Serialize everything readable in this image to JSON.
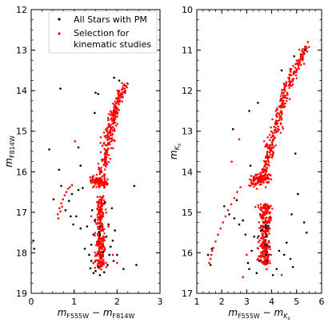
{
  "chart_data": [
    {
      "type": "scatter",
      "xlabel": {
        "base": "m",
        "sub": "F555W",
        "minus": " − ",
        "base2": "m",
        "sub2": "F814W"
      },
      "ylabel": {
        "base": "m",
        "sub": "F814W"
      },
      "xlim": [
        0,
        3
      ],
      "ylim": [
        19,
        12
      ],
      "xticks": [
        0,
        1,
        2,
        3
      ],
      "yticks": [
        12,
        13,
        14,
        15,
        16,
        17,
        18,
        19
      ],
      "grid": false,
      "legend": "top-right",
      "series": [
        {
          "name": "All Stars with PM",
          "color": "#000000",
          "marker": "dot",
          "points": [
            [
              0.68,
              13.95
            ],
            [
              1.5,
              14.05
            ],
            [
              1.56,
              14.08
            ],
            [
              1.93,
              13.68
            ],
            [
              2.05,
              13.75
            ],
            [
              1.48,
              14.55
            ],
            [
              1.1,
              15.4
            ],
            [
              1.15,
              15.85
            ],
            [
              0.42,
              15.45
            ],
            [
              0.65,
              15.95
            ],
            [
              0.7,
              16.35
            ],
            [
              0.52,
              16.68
            ],
            [
              0.88,
              16.72
            ],
            [
              0.8,
              16.95
            ],
            [
              0.92,
              17.1
            ],
            [
              0.98,
              17.3
            ],
            [
              1.05,
              17.1
            ],
            [
              1.15,
              17.4
            ],
            [
              0.95,
              16.55
            ],
            [
              1.1,
              16.45
            ],
            [
              1.2,
              16.4
            ],
            [
              2.4,
              16.35
            ],
            [
              1.3,
              17.35
            ],
            [
              1.25,
              17.9
            ],
            [
              0.05,
              17.7
            ],
            [
              0.07,
              17.9
            ],
            [
              1.9,
              17.7
            ],
            [
              2.0,
              18.05
            ],
            [
              2.15,
              18.4
            ],
            [
              2.45,
              18.3
            ],
            [
              1.4,
              18.2
            ],
            [
              1.35,
              18.05
            ],
            [
              1.45,
              18.5
            ],
            [
              1.5,
              18.45
            ],
            [
              1.82,
              18.05
            ],
            [
              1.85,
              17.85
            ],
            [
              1.75,
              17.6
            ],
            [
              1.45,
              17.55
            ],
            [
              1.48,
              17.2
            ],
            [
              1.8,
              17.3
            ],
            [
              1.95,
              17.45
            ],
            [
              1.4,
              17.8
            ],
            [
              1.88,
              16.9
            ],
            [
              1.72,
              16.75
            ],
            [
              1.42,
              16.95
            ],
            [
              1.92,
              18.2
            ],
            [
              1.6,
              18.55
            ],
            [
              1.7,
              18.48
            ],
            [
              1.38,
              18.38
            ],
            [
              1.78,
              18.3
            ]
          ]
        },
        {
          "name": "Selection for kinematic studies",
          "color": "#ff0000",
          "marker": "dot",
          "points": [
            [
              0.62,
              17.05
            ],
            [
              0.66,
              16.9
            ],
            [
              0.7,
              16.78
            ],
            [
              0.74,
              16.68
            ],
            [
              0.78,
              16.58
            ],
            [
              0.82,
              16.5
            ],
            [
              0.86,
              16.42
            ],
            [
              0.9,
              16.38
            ],
            [
              0.95,
              16.33
            ],
            [
              0.63,
              17.15
            ],
            [
              0.68,
              16.98
            ],
            [
              0.72,
              16.86
            ],
            [
              1.02,
              15.25
            ],
            [
              1.62,
              15.15
            ],
            [
              1.66,
              15.7
            ],
            [
              1.7,
              16.1
            ],
            [
              1.4,
              17.1
            ],
            [
              1.8,
              17.35
            ],
            [
              2.0,
              18.25
            ],
            [
              1.9,
              18.05
            ],
            [
              1.45,
              18.25
            ],
            [
              1.75,
              18.35
            ]
          ]
        }
      ]
    },
    {
      "type": "scatter",
      "xlabel": {
        "base": "m",
        "sub": "F555W",
        "minus": " − ",
        "base2": "m",
        "sub2": "K",
        "subsub": "s"
      },
      "ylabel": {
        "base": "m",
        "sub": "K",
        "subsub": "s"
      },
      "xlim": [
        1,
        6
      ],
      "ylim": [
        17,
        10
      ],
      "xticks": [
        1,
        2,
        3,
        4,
        5,
        6
      ],
      "yticks": [
        10,
        11,
        12,
        13,
        14,
        15,
        16,
        17
      ],
      "grid": false,
      "legend": "none",
      "series": [
        {
          "name": "All Stars with PM",
          "color": "#000000",
          "marker": "dot",
          "points": [
            [
              2.45,
              12.95
            ],
            [
              3.1,
              12.5
            ],
            [
              3.45,
              12.3
            ],
            [
              4.9,
              11.15
            ],
            [
              5.35,
              11.0
            ],
            [
              4.4,
              11.5
            ],
            [
              2.1,
              14.85
            ],
            [
              2.3,
              15.05
            ],
            [
              2.5,
              15.15
            ],
            [
              2.7,
              15.3
            ],
            [
              2.85,
              15.2
            ],
            [
              2.6,
              14.7
            ],
            [
              1.55,
              16.3
            ],
            [
              1.45,
              16.05
            ],
            [
              1.6,
              15.9
            ],
            [
              5.3,
              15.25
            ],
            [
              5.4,
              15.5
            ],
            [
              5.05,
              14.55
            ],
            [
              4.95,
              13.55
            ],
            [
              3.05,
              16.25
            ],
            [
              3.1,
              16.4
            ],
            [
              3.2,
              15.95
            ],
            [
              4.75,
              16.15
            ],
            [
              4.5,
              16.05
            ],
            [
              4.3,
              15.95
            ],
            [
              4.2,
              16.4
            ],
            [
              4.6,
              15.75
            ],
            [
              3.4,
              16.5
            ],
            [
              3.5,
              16.2
            ],
            [
              3.3,
              15.6
            ],
            [
              4.8,
              15.05
            ],
            [
              4.85,
              16.35
            ],
            [
              4.05,
              16.55
            ],
            [
              2.95,
              15.55
            ],
            [
              3.15,
              13.85
            ]
          ]
        },
        {
          "name": "Selection for kinematic studies",
          "color": "#ff0000",
          "marker": "dot",
          "points": [
            [
              1.5,
              16.25
            ],
            [
              1.58,
              16.05
            ],
            [
              1.66,
              15.88
            ],
            [
              1.75,
              15.72
            ],
            [
              1.85,
              15.55
            ],
            [
              1.95,
              15.4
            ],
            [
              2.05,
              15.25
            ],
            [
              2.15,
              15.1
            ],
            [
              2.25,
              14.95
            ],
            [
              2.38,
              14.8
            ],
            [
              2.5,
              14.65
            ],
            [
              2.62,
              14.5
            ],
            [
              2.75,
              14.38
            ],
            [
              1.55,
              16.15
            ],
            [
              1.62,
              15.95
            ],
            [
              2.85,
              16.6
            ],
            [
              3.0,
              16.05
            ],
            [
              2.7,
              13.2
            ],
            [
              2.4,
              13.75
            ],
            [
              4.2,
              13.0
            ],
            [
              5.45,
              10.8
            ],
            [
              5.3,
              11.1
            ],
            [
              3.8,
              16.4
            ],
            [
              4.4,
              16.55
            ]
          ]
        }
      ]
    }
  ],
  "legend": {
    "entries": [
      {
        "label_lines": [
          "All Stars with PM"
        ],
        "color": "#000000"
      },
      {
        "label_lines": [
          "Selection for",
          "kinematic studies"
        ],
        "color": "#ff0000"
      }
    ]
  }
}
